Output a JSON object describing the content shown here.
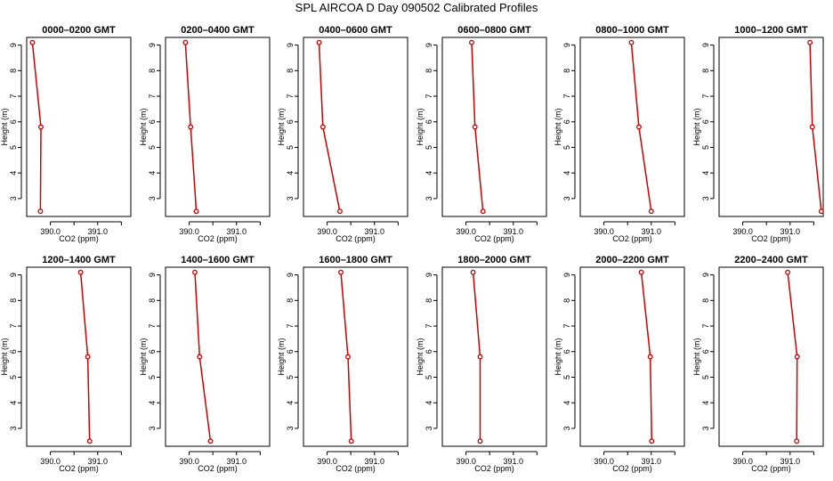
{
  "title": "SPL AIRCOA D  Day 090502  Calibrated Profiles",
  "colors": {
    "line": "#cc0000",
    "axis": "#000000"
  },
  "chart_data": [
    {
      "type": "line",
      "title": "0000–0200 GMT",
      "xlabel": "CO2 (ppm)",
      "ylabel": "Height (m)",
      "xlim": [
        389.5,
        391.7
      ],
      "ylim": [
        2.3,
        9.3
      ],
      "xticks": [
        "390.0",
        "391.0"
      ],
      "yticks": [
        "3",
        "4",
        "5",
        "6",
        "7",
        "8",
        "9"
      ],
      "series": [
        {
          "x": [
            389.62,
            389.8,
            389.79
          ],
          "y": [
            9.1,
            5.8,
            2.5
          ]
        }
      ]
    },
    {
      "type": "line",
      "title": "0200–0400 GMT",
      "xlabel": "CO2 (ppm)",
      "ylabel": "Height (m)",
      "xlim": [
        389.5,
        391.7
      ],
      "ylim": [
        2.3,
        9.3
      ],
      "xticks": [
        "390.0",
        "391.0"
      ],
      "yticks": [
        "3",
        "4",
        "5",
        "6",
        "7",
        "8",
        "9"
      ],
      "series": [
        {
          "x": [
            389.92,
            390.03,
            390.15
          ],
          "y": [
            9.1,
            5.8,
            2.5
          ]
        }
      ]
    },
    {
      "type": "line",
      "title": "0400–0600 GMT",
      "xlabel": "CO2 (ppm)",
      "ylabel": "Height (m)",
      "xlim": [
        389.5,
        391.7
      ],
      "ylim": [
        2.3,
        9.3
      ],
      "xticks": [
        "390.0",
        "391.0"
      ],
      "yticks": [
        "3",
        "4",
        "5",
        "6",
        "7",
        "8",
        "9"
      ],
      "series": [
        {
          "x": [
            389.83,
            389.91,
            390.27
          ],
          "y": [
            9.1,
            5.8,
            2.5
          ]
        }
      ]
    },
    {
      "type": "line",
      "title": "0600–0800 GMT",
      "xlabel": "CO2 (ppm)",
      "ylabel": "Height (m)",
      "xlim": [
        389.5,
        391.7
      ],
      "ylim": [
        2.3,
        9.3
      ],
      "xticks": [
        "390.0",
        "391.0"
      ],
      "yticks": [
        "3",
        "4",
        "5",
        "6",
        "7",
        "8",
        "9"
      ],
      "series": [
        {
          "x": [
            390.12,
            390.19,
            390.36
          ],
          "y": [
            9.1,
            5.8,
            2.5
          ]
        }
      ]
    },
    {
      "type": "line",
      "title": "0800–1000 GMT",
      "xlabel": "CO2 (ppm)",
      "ylabel": "Height (m)",
      "xlim": [
        389.5,
        391.7
      ],
      "ylim": [
        2.3,
        9.3
      ],
      "xticks": [
        "390.0",
        "391.0"
      ],
      "yticks": [
        "3",
        "4",
        "5",
        "6",
        "7",
        "8",
        "9"
      ],
      "series": [
        {
          "x": [
            390.58,
            390.74,
            391.0
          ],
          "y": [
            9.1,
            5.8,
            2.5
          ]
        }
      ]
    },
    {
      "type": "line",
      "title": "1000–1200 GMT",
      "xlabel": "CO2 (ppm)",
      "ylabel": "Height (m)",
      "xlim": [
        389.5,
        391.7
      ],
      "ylim": [
        2.3,
        9.3
      ],
      "xticks": [
        "390.0",
        "391.0"
      ],
      "yticks": [
        "3",
        "4",
        "5",
        "6",
        "7",
        "8",
        "9"
      ],
      "series": [
        {
          "x": [
            391.42,
            391.47,
            391.66
          ],
          "y": [
            9.1,
            5.8,
            2.5
          ]
        }
      ]
    },
    {
      "type": "line",
      "title": "1200–1400 GMT",
      "xlabel": "CO2 (ppm)",
      "ylabel": "Height (m)",
      "xlim": [
        389.5,
        391.7
      ],
      "ylim": [
        2.3,
        9.3
      ],
      "xticks": [
        "390.0",
        "391.0"
      ],
      "yticks": [
        "3",
        "4",
        "5",
        "6",
        "7",
        "8",
        "9"
      ],
      "series": [
        {
          "x": [
            390.64,
            390.79,
            390.83
          ],
          "y": [
            9.1,
            5.8,
            2.5
          ]
        }
      ]
    },
    {
      "type": "line",
      "title": "1400–1600 GMT",
      "xlabel": "CO2 (ppm)",
      "ylabel": "Height (m)",
      "xlim": [
        389.5,
        391.7
      ],
      "ylim": [
        2.3,
        9.3
      ],
      "xticks": [
        "390.0",
        "391.0"
      ],
      "yticks": [
        "3",
        "4",
        "5",
        "6",
        "7",
        "8",
        "9"
      ],
      "series": [
        {
          "x": [
            390.12,
            390.22,
            390.45
          ],
          "y": [
            9.1,
            5.8,
            2.5
          ]
        }
      ]
    },
    {
      "type": "line",
      "title": "1600–1800 GMT",
      "xlabel": "CO2 (ppm)",
      "ylabel": "Height (m)",
      "xlim": [
        389.5,
        391.7
      ],
      "ylim": [
        2.3,
        9.3
      ],
      "xticks": [
        "390.0",
        "391.0"
      ],
      "yticks": [
        "3",
        "4",
        "5",
        "6",
        "7",
        "8",
        "9"
      ],
      "series": [
        {
          "x": [
            390.29,
            390.44,
            390.51
          ],
          "y": [
            9.1,
            5.8,
            2.5
          ]
        }
      ]
    },
    {
      "type": "line",
      "title": "1800–2000 GMT",
      "xlabel": "CO2 (ppm)",
      "ylabel": "Height (m)",
      "xlim": [
        389.5,
        391.7
      ],
      "ylim": [
        2.3,
        9.3
      ],
      "xticks": [
        "390.0",
        "391.0"
      ],
      "yticks": [
        "3",
        "4",
        "5",
        "6",
        "7",
        "8",
        "9"
      ],
      "series": [
        {
          "x": [
            390.15,
            390.3,
            390.3
          ],
          "y": [
            9.1,
            5.8,
            2.5
          ]
        }
      ]
    },
    {
      "type": "line",
      "title": "2000–2200 GMT",
      "xlabel": "CO2 (ppm)",
      "ylabel": "Height (m)",
      "xlim": [
        389.5,
        391.7
      ],
      "ylim": [
        2.3,
        9.3
      ],
      "xticks": [
        "390.0",
        "391.0"
      ],
      "yticks": [
        "3",
        "4",
        "5",
        "6",
        "7",
        "8",
        "9"
      ],
      "series": [
        {
          "x": [
            390.79,
            390.98,
            391.01
          ],
          "y": [
            9.1,
            5.8,
            2.5
          ]
        }
      ]
    },
    {
      "type": "line",
      "title": "2200–2400 GMT",
      "xlabel": "CO2 (ppm)",
      "ylabel": "Height (m)",
      "xlim": [
        389.5,
        391.7
      ],
      "ylim": [
        2.3,
        9.3
      ],
      "xticks": [
        "390.0",
        "391.0"
      ],
      "yticks": [
        "3",
        "4",
        "5",
        "6",
        "7",
        "8",
        "9"
      ],
      "series": [
        {
          "x": [
            390.95,
            391.15,
            391.14
          ],
          "y": [
            9.1,
            5.8,
            2.5
          ]
        }
      ]
    }
  ]
}
